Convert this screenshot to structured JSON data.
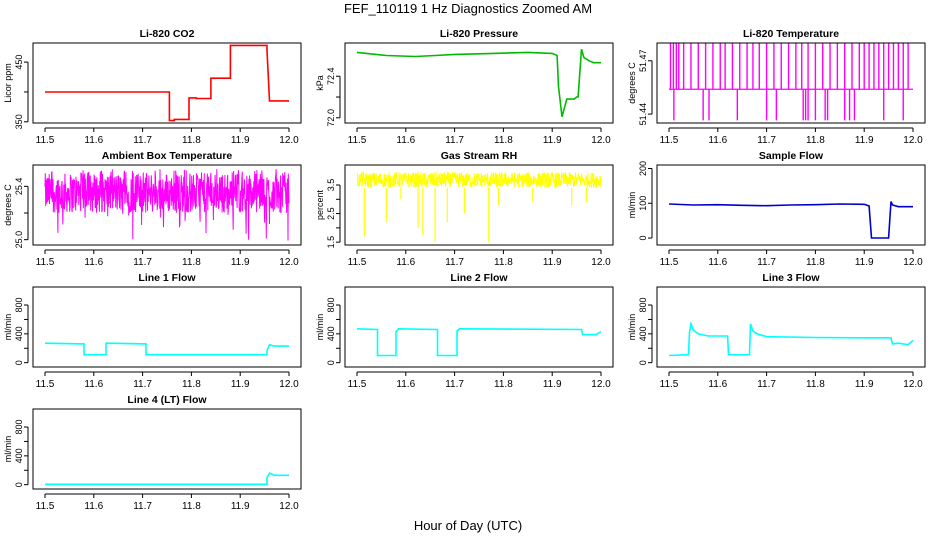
{
  "page_title": "FEF_110119  1 Hz Diagnostics Zoomed AM",
  "x_axis_title": "Hour of Day (UTC)",
  "chart_data": [
    {
      "type": "line",
      "title": "Li-820 CO2",
      "ylabel": "Licor ppm",
      "color": "#ff0000",
      "xlim": [
        11.5,
        12.0
      ],
      "ylim": [
        348,
        482
      ],
      "yticks": [
        350,
        400,
        450
      ],
      "ytick_labels": [
        "350",
        "",
        "450"
      ],
      "x": [
        11.5,
        11.755,
        11.755,
        11.765,
        11.765,
        11.795,
        11.795,
        11.81,
        11.81,
        11.84,
        11.84,
        11.88,
        11.88,
        11.955,
        11.955,
        11.96,
        11.96,
        12.0
      ],
      "y": [
        400,
        400,
        352,
        352,
        354,
        354,
        390,
        390,
        389,
        389,
        423,
        423,
        478,
        478,
        470,
        385,
        385,
        385
      ]
    },
    {
      "type": "line",
      "title": "Li-820 Pressure",
      "ylabel": "kPa",
      "color": "#00bb00",
      "xlim": [
        11.5,
        12.0
      ],
      "ylim": [
        71.95,
        72.72
      ],
      "yticks": [
        72.0,
        72.2,
        72.4
      ],
      "ytick_labels": [
        "72.0",
        "",
        "72.4"
      ],
      "x": [
        11.5,
        11.52,
        11.56,
        11.62,
        11.66,
        11.7,
        11.78,
        11.85,
        11.9,
        11.91,
        11.913,
        11.92,
        11.93,
        11.945,
        11.95,
        11.953,
        11.96,
        11.965,
        11.975,
        11.985,
        12.0
      ],
      "y": [
        72.63,
        72.62,
        72.6,
        72.59,
        72.6,
        72.61,
        72.62,
        72.63,
        72.62,
        72.6,
        72.3,
        72.01,
        72.18,
        72.18,
        72.2,
        72.2,
        72.66,
        72.58,
        72.55,
        72.53,
        72.53
      ]
    },
    {
      "type": "line",
      "title": "Li-820 Temperature",
      "ylabel": "degrees C",
      "color": "#ff00ff",
      "xlim": [
        11.5,
        12.0
      ],
      "ylim": [
        51.435,
        51.48
      ],
      "yticks": [
        51.44,
        51.47
      ],
      "ytick_labels": [
        "51.44",
        "51.47"
      ],
      "baseline": 51.454,
      "spike_high": 51.48,
      "spike_low": 51.4365,
      "spike_high_x": [
        11.503,
        11.509,
        11.515,
        11.52,
        11.53,
        11.545,
        11.56,
        11.575,
        11.59,
        11.605,
        11.615,
        11.63,
        11.645,
        11.66,
        11.672,
        11.685,
        11.7,
        11.715,
        11.73,
        11.745,
        11.76,
        11.772,
        11.785,
        11.8,
        11.815,
        11.83,
        11.845,
        11.86,
        11.875,
        11.89,
        11.9,
        11.91,
        11.92,
        11.93,
        11.94,
        11.95,
        11.96,
        11.97,
        11.98,
        11.99
      ],
      "spike_low_x": [
        11.51,
        11.57,
        11.582,
        11.64,
        11.7,
        11.72,
        11.775,
        11.78,
        11.785,
        11.8,
        11.82,
        11.825,
        11.86,
        11.87,
        11.88,
        11.94,
        11.98
      ]
    },
    {
      "type": "line",
      "title": "Ambient Box Temperature",
      "ylabel": "degrees C",
      "color": "#ff00ff",
      "xlim": [
        11.5,
        12.0
      ],
      "ylim": [
        24.96,
        25.56
      ],
      "yticks": [
        25.0,
        25.2,
        25.4
      ],
      "ytick_labels": [
        "25.0",
        "",
        "25.4"
      ],
      "band_low": 25.2,
      "band_high": 25.5,
      "center": 25.35,
      "noise_min": 24.98,
      "noise_max": 25.53
    },
    {
      "type": "line",
      "title": "Gas Stream RH",
      "ylabel": "percent",
      "color": "#ffff00",
      "xlim": [
        11.5,
        12.0
      ],
      "ylim": [
        1.4,
        4.2
      ],
      "yticks": [
        1.5,
        2.0,
        2.5,
        3.0,
        3.5
      ],
      "ytick_labels": [
        "1.5",
        "",
        "2.5",
        "",
        "3.5"
      ],
      "band_low": 3.4,
      "band_high": 3.95,
      "dips_x": [
        11.515,
        11.56,
        11.59,
        11.625,
        11.635,
        11.66,
        11.685,
        11.72,
        11.77,
        11.79,
        11.86,
        11.94,
        11.97
      ],
      "dips_y": [
        1.7,
        2.2,
        3.0,
        2.0,
        1.75,
        1.5,
        2.2,
        2.5,
        1.5,
        2.8,
        2.9,
        2.8,
        2.9
      ]
    },
    {
      "type": "line",
      "title": "Sample Flow",
      "ylabel": "ml/min",
      "color": "#0000cc",
      "xlim": [
        11.5,
        12.0
      ],
      "ylim": [
        -20,
        210
      ],
      "yticks": [
        0,
        100,
        200
      ],
      "ytick_labels": [
        "0",
        "100",
        "200"
      ],
      "x": [
        11.5,
        11.55,
        11.6,
        11.65,
        11.7,
        11.75,
        11.8,
        11.85,
        11.9,
        11.91,
        11.915,
        11.95,
        11.955,
        11.958,
        11.97,
        12.0
      ],
      "y": [
        98,
        95,
        96,
        94,
        93,
        95,
        96,
        98,
        97,
        92,
        0,
        0,
        105,
        95,
        90,
        90
      ]
    },
    {
      "type": "line",
      "title": "Line 1 Flow",
      "ylabel": "ml/min",
      "color": "#00ffff",
      "xlim": [
        11.5,
        12.0
      ],
      "ylim": [
        -60,
        1050
      ],
      "yticks": [
        0,
        200,
        400,
        600,
        800
      ],
      "ytick_labels": [
        "0",
        "",
        "400",
        "",
        "800"
      ],
      "x": [
        11.5,
        11.58,
        11.58,
        11.625,
        11.625,
        11.707,
        11.707,
        11.955,
        11.955,
        11.96,
        11.97,
        12.0
      ],
      "y": [
        270,
        260,
        110,
        110,
        270,
        260,
        110,
        110,
        170,
        250,
        230,
        230
      ]
    },
    {
      "type": "line",
      "title": "Line 2 Flow",
      "ylabel": "ml/min",
      "color": "#00ffff",
      "xlim": [
        11.5,
        12.0
      ],
      "ylim": [
        -60,
        1050
      ],
      "yticks": [
        0,
        200,
        400,
        600,
        800
      ],
      "ytick_labels": [
        "0",
        "",
        "400",
        "",
        "800"
      ],
      "x": [
        11.5,
        11.542,
        11.542,
        11.58,
        11.58,
        11.585,
        11.665,
        11.665,
        11.705,
        11.705,
        11.71,
        11.96,
        11.962,
        11.99,
        12.0
      ],
      "y": [
        470,
        460,
        100,
        100,
        430,
        470,
        460,
        100,
        100,
        440,
        470,
        460,
        390,
        390,
        430
      ]
    },
    {
      "type": "line",
      "title": "Line 3 Flow",
      "ylabel": "ml/min",
      "color": "#00ffff",
      "xlim": [
        11.5,
        12.0
      ],
      "ylim": [
        -60,
        1050
      ],
      "yticks": [
        0,
        200,
        400,
        600,
        800
      ],
      "ytick_labels": [
        "0",
        "",
        "400",
        "",
        "800"
      ],
      "x": [
        11.5,
        11.54,
        11.542,
        11.545,
        11.55,
        11.56,
        11.58,
        11.62,
        11.622,
        11.665,
        11.667,
        11.672,
        11.68,
        11.7,
        11.8,
        11.9,
        11.955,
        11.958,
        11.97,
        11.99,
        12.0
      ],
      "y": [
        100,
        110,
        420,
        540,
        450,
        400,
        370,
        370,
        110,
        110,
        540,
        440,
        400,
        360,
        350,
        345,
        345,
        260,
        270,
        250,
        310
      ]
    },
    {
      "type": "line",
      "title": "Line 4 (LT) Flow",
      "ylabel": "ml/min",
      "color": "#00ffff",
      "xlim": [
        11.5,
        12.0
      ],
      "ylim": [
        -60,
        1050
      ],
      "yticks": [
        0,
        200,
        400,
        600,
        800
      ],
      "ytick_labels": [
        "0",
        "",
        "400",
        "",
        "800"
      ],
      "x": [
        11.5,
        11.955,
        11.955,
        11.96,
        11.97,
        12.0
      ],
      "y": [
        5,
        5,
        100,
        160,
        130,
        130
      ]
    }
  ],
  "x_ticks": [
    11.5,
    11.6,
    11.7,
    11.8,
    11.9,
    12.0
  ],
  "x_tick_labels": [
    "11.5",
    "11.6",
    "11.7",
    "11.8",
    "11.9",
    "12.0"
  ]
}
